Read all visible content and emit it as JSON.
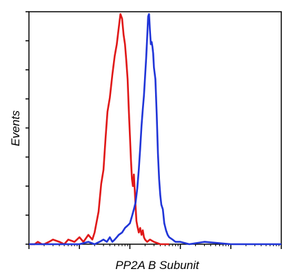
{
  "chart_data": {
    "type": "line",
    "title": "",
    "xlabel": "PP2A B Subunit",
    "ylabel": "Events",
    "x_scale": "log",
    "xlim": [
      0.1,
      10000
    ],
    "ylim": [
      0,
      100
    ],
    "grid": false,
    "legend": "none",
    "series": [
      {
        "color": "#e01818",
        "x": [
          0.1,
          0.13,
          0.15,
          0.18,
          0.2,
          0.25,
          0.3,
          0.4,
          0.5,
          0.6,
          0.8,
          1.0,
          1.2,
          1.5,
          1.8,
          2.0,
          2.4,
          2.7,
          3.0,
          3.3,
          3.6,
          4.0,
          4.5,
          5.0,
          5.5,
          6.0,
          6.5,
          7.0,
          7.5,
          8.0,
          8.5,
          9.0,
          9.5,
          10.0,
          10.5,
          11.0,
          11.5,
          12.0,
          12.5,
          13.0,
          13.5,
          14.0,
          15.0,
          16.0,
          17.0,
          18.0,
          19.0,
          20.0,
          22.0,
          25.0,
          30.0,
          40.0,
          60.0
        ],
        "values": [
          0,
          0,
          1,
          0,
          0,
          1,
          2,
          1,
          0,
          2,
          1,
          3,
          1,
          4,
          2,
          5,
          14,
          26,
          32,
          46,
          57,
          63,
          73,
          81,
          86,
          93,
          99,
          97,
          90,
          86,
          79,
          71,
          58,
          47,
          36,
          28,
          25,
          30,
          23,
          16,
          10,
          8,
          5,
          7,
          4,
          6,
          3,
          2,
          1,
          2,
          1,
          0,
          0
        ]
      },
      {
        "color": "#2035d8",
        "x": [
          0.1,
          0.2,
          0.4,
          0.7,
          1.0,
          1.5,
          2.0,
          2.5,
          3.0,
          3.5,
          4.0,
          4.5,
          5.0,
          5.5,
          6.0,
          7.0,
          8.0,
          9.0,
          10.0,
          11.0,
          12.0,
          13.0,
          14.0,
          15.0,
          16.0,
          17.0,
          18.0,
          19.0,
          20.0,
          21.0,
          22.0,
          23.0,
          24.0,
          25.0,
          26.0,
          27.0,
          28.0,
          29.0,
          30.0,
          32.0,
          34.0,
          36.0,
          38.0,
          40.0,
          42.0,
          45.0,
          48.0,
          52.0,
          56.0,
          60.0,
          70.0,
          80.0,
          100.0,
          150.0,
          300.0,
          1000.0,
          10000.0
        ],
        "values": [
          0,
          0,
          0,
          0,
          0,
          1,
          0,
          1,
          2,
          1,
          3,
          1,
          2,
          3,
          4,
          5,
          7,
          8,
          9,
          12,
          15,
          18,
          24,
          32,
          41,
          51,
          58,
          64,
          72,
          80,
          89,
          98,
          99,
          92,
          86,
          87,
          85,
          82,
          76,
          71,
          56,
          39,
          28,
          21,
          17,
          15,
          9,
          6,
          4,
          3,
          2,
          1,
          1,
          0,
          1,
          0,
          0
        ]
      }
    ]
  }
}
